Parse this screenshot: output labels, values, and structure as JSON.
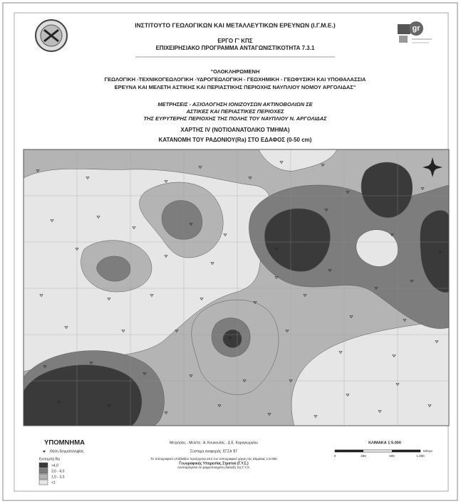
{
  "header": {
    "institute": "ΙΝΣΤΙΤΟΥΤΟ ΓΕΩΛΟΓΙΚΩΝ ΚΑΙ ΜΕΤΑΛΛΕΥΤΙΚΩΝ ΕΡΕΥΝΩΝ (Ι.Γ.Μ.Ε.)",
    "project": "ΕΡΓΟ Γ' ΚΠΣ",
    "programme": "ΕΠΙΧΕΙΡΗΣΙΑΚΟ ΠΡΟΓΡΑΜΜΑ ΑΝΤΑΓΩΝΙΣΤΙΚΟΤΗΤΑ 7.3.1"
  },
  "logo": {
    "text": "gr"
  },
  "title": {
    "lines": [
      "\"ΟΛΟΚΛΗΡΩΜΕΝΗ",
      "ΓΕΩΛΟΓΙΚΗ -ΤΕΧΝΙΚΟΓΕΩΛΟΓΙΚΗ -ΥΔΡΟΓΕΩΛΟΓΙΚΗ - ΓΕΩΧΗΜΙΚΗ - ΓΕΩΦΥΣΙΚΗ ΚΑΙ ΥΠΟΘΑΛΑΣΣΙΑ",
      "ΕΡΕΥΝΑ ΚΑΙ ΜΕΛΕΤΗ ΑΣΤΙΚΗΣ ΚΑΙ ΠΕΡΙΑΣΤΙΚΗΣ ΠΕΡΙΟΧΗΣ ΝΑΥΠΛΙΟΥ ΝΟΜΟΥ ΑΡΓΟΛΙΔΑΣ\""
    ]
  },
  "subtitle": {
    "lines": [
      "ΜΕΤΡΗΣΕΙΣ - ΑΞΙΟΛΟΓΗΣΗ ΙΟΝΙΖΟΥΣΩΝ ΑΚΤΙΝΟΒΟΛΙΩΝ ΣΕ",
      "ΑΣΤΙΚΕΣ ΚΑΙ ΠΕΡΙΑΣΤΙΚΕΣ ΠΕΡΙΟΧΕΣ",
      "ΤΗΣ ΕΥΡΥΤΕΡΗΣ ΠΕΡΙΟΧΗΣ ΤΗΣ ΠΟΛΗΣ ΤΟΥ ΝΑΥΠΛΙΟΥ Ν. ΑΡΓΟΛΙΔΑΣ"
    ]
  },
  "map_title": "ΧΑΡΤΗΣ IV (ΝΟΤΙΟΑΝΑΤΟΛΙΚΟ ΤΜΗΜΑ)",
  "map_subtitle": "ΚΑΤΑΝΟΜΗ ΤΟΥ ΡΑΔΟΝΙΟΥ(Ra) ΣΤΟ ΕΔΑΦΟΣ (0-50 cm)",
  "legend": {
    "title": "ΥΠΟΜΝΗΜΑ",
    "sample_label": "Θέση δειγματοληψίας",
    "emission_label": "Εκπομπή Ra",
    "classes": [
      {
        "label": ">4,0",
        "color": "#3a3a3a"
      },
      {
        "label": "3,0 - 4,0",
        "color": "#7d7d7d"
      },
      {
        "label": "1,0 - 3,0",
        "color": "#b4b4b4"
      },
      {
        "label": "<1",
        "color": "#e6e6e6"
      }
    ]
  },
  "credits": {
    "authors": "Μετρήσεις - Μελέτη :  Α. Κουκουλάς - Δ.Ε. Καραγιωργίου",
    "reference": "Σύστημα αναφοράς: ΕΓΣΑ '87",
    "notes": [
      "Το τοπογραφικό υπόβαθρο προέρχεται από τον τοπογραφικό χάρτη της κλίμακας 1:5.000",
      "Γεωγραφικής Υπηρεσίας Στρατού (Γ.Υ.Σ.)",
      "Αναπαράγεται σε ψηφιοποιημένη διάταξη της Γ.Υ.Σ."
    ]
  },
  "scale": {
    "title": "ΚΛΙΜΑΚΑ 1:5.000",
    "ticks": [
      "0",
      "250",
      "500",
      "1.000"
    ],
    "unit": "Μέτρα"
  }
}
